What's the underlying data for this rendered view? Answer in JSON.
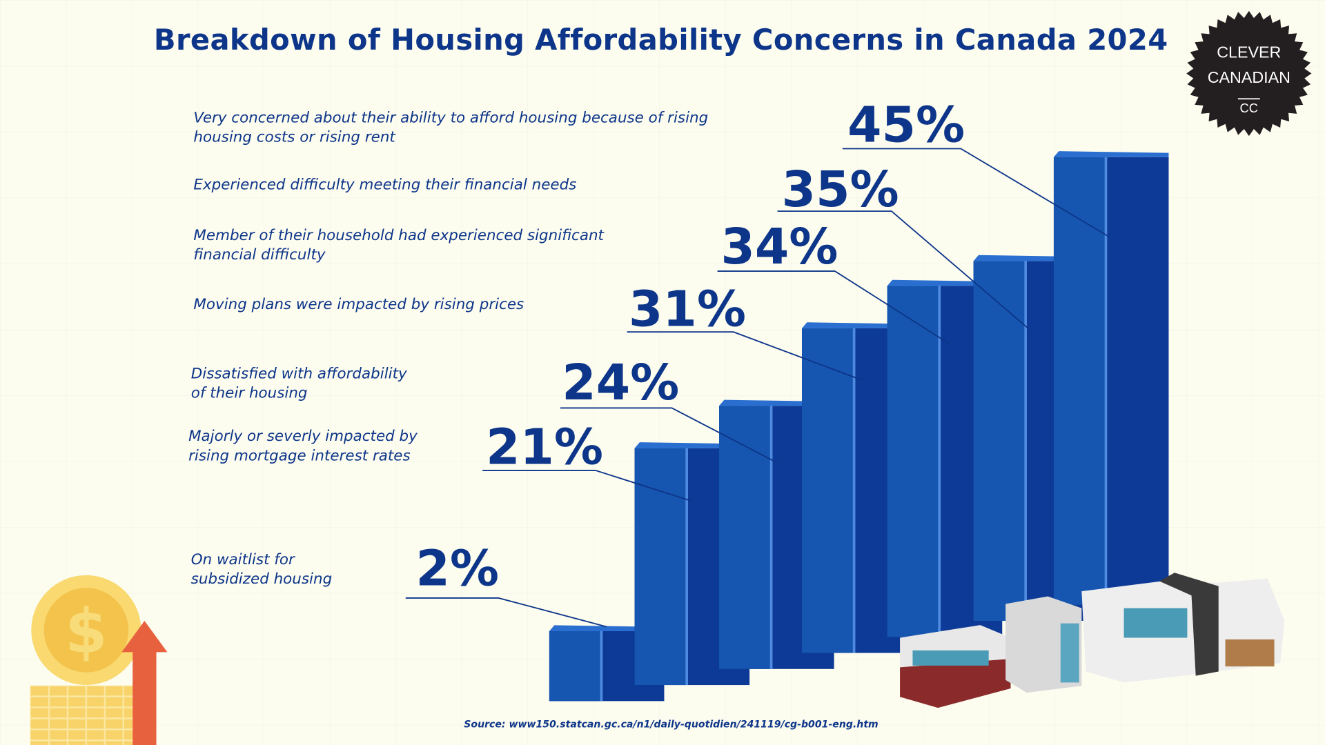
{
  "title": "Breakdown of Housing Affordability Concerns in Canada 2024",
  "logo": {
    "line1": "CLEVER",
    "line2": "CANADIAN",
    "mark": "CC"
  },
  "source": "Source: www150.statcan.gc.ca/n1/daily-quotidien/241119/cg-b001-eng.htm",
  "colors": {
    "text": "#0d3589",
    "bar_front": "#0d3a96",
    "bar_light": "#1656b0",
    "bar_top": "#2a6fd0",
    "background": "#fcfcef"
  },
  "chart_data": {
    "type": "bar",
    "title": "Breakdown of Housing Affordability Concerns in Canada 2024",
    "categories": [
      "On waitlist for\nsubsidized housing",
      "Majorly or severly impacted by\nrising mortgage interest rates",
      "Dissatisfied with affordability\nof their housing",
      "Moving plans were impacted by rising prices",
      "Member of their household had experienced significant\nfinancial difficulty",
      "Experienced difficulty meeting their financial needs",
      "Very concerned about their ability to afford housing because of rising\nhousing costs or rising rent"
    ],
    "values": [
      2,
      21,
      24,
      31,
      34,
      35,
      45
    ],
    "value_labels": [
      "2%",
      "21%",
      "24%",
      "31%",
      "34%",
      "35%",
      "45%"
    ],
    "unit": "%",
    "grid": false
  }
}
